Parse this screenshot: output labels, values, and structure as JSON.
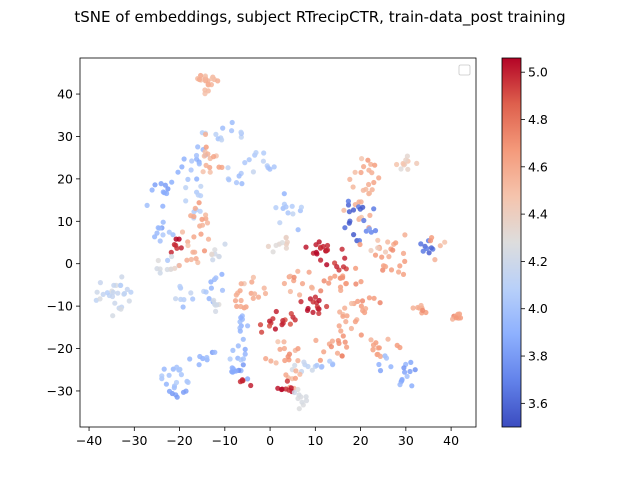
{
  "chart_data": {
    "type": "scatter",
    "title": "tSNE of embeddings, subject RTrecipCTR, train-data_post training",
    "xlabel": "",
    "ylabel": "",
    "xlim": [
      -42,
      45.5
    ],
    "ylim": [
      -38.5,
      48.5
    ],
    "x_ticks": [
      -40,
      -30,
      -20,
      -10,
      0,
      10,
      20,
      30,
      40
    ],
    "y_ticks": [
      -30,
      -20,
      -10,
      0,
      10,
      20,
      30,
      40
    ],
    "grid": false,
    "legend": {
      "placement": "top-right",
      "entries": []
    },
    "colorbar": {
      "colormap": "coolwarm",
      "vmin": 3.5,
      "vmax": 5.06,
      "ticks": [
        "3.6",
        "3.8",
        "4.0",
        "4.2",
        "4.4",
        "4.6",
        "4.8",
        "5.0"
      ],
      "tick_values": [
        3.6,
        3.8,
        4.0,
        4.2,
        4.4,
        4.6,
        4.8,
        5.0
      ]
    },
    "clusters": [
      {
        "cx": -14,
        "cy": 43,
        "sx": 1.2,
        "sy": 1.1,
        "n": 20,
        "value": 4.55
      },
      {
        "cx": -10,
        "cy": 31,
        "sx": 2.5,
        "sy": 1.5,
        "n": 12,
        "value": 4.05
      },
      {
        "cx": -18,
        "cy": 24,
        "sx": 2.5,
        "sy": 2.0,
        "n": 14,
        "value": 3.95
      },
      {
        "cx": -13,
        "cy": 23,
        "sx": 2.0,
        "sy": 3.0,
        "n": 14,
        "value": 4.55
      },
      {
        "cx": -2,
        "cy": 24,
        "sx": 1.5,
        "sy": 2.0,
        "n": 10,
        "value": 4.05
      },
      {
        "cx": -7,
        "cy": 21,
        "sx": 1.5,
        "sy": 1.5,
        "n": 8,
        "value": 4.05
      },
      {
        "cx": -24,
        "cy": 17,
        "sx": 1.5,
        "sy": 1.5,
        "n": 10,
        "value": 3.85
      },
      {
        "cx": -17,
        "cy": 15,
        "sx": 1.5,
        "sy": 2.5,
        "n": 10,
        "value": 4.1
      },
      {
        "cx": -15,
        "cy": 10,
        "sx": 2.0,
        "sy": 3.0,
        "n": 14,
        "value": 4.6
      },
      {
        "cx": -24,
        "cy": 7,
        "sx": 1.5,
        "sy": 3.0,
        "n": 12,
        "value": 4.0
      },
      {
        "cx": -21,
        "cy": 5,
        "sx": 0.8,
        "sy": 1.0,
        "n": 7,
        "value": 4.95
      },
      {
        "cx": -22,
        "cy": -1,
        "sx": 1.5,
        "sy": 1.5,
        "n": 10,
        "value": 4.25
      },
      {
        "cx": -17,
        "cy": 1,
        "sx": 1.5,
        "sy": 2.0,
        "n": 10,
        "value": 4.55
      },
      {
        "cx": -12,
        "cy": 2,
        "sx": 1.0,
        "sy": 1.5,
        "n": 8,
        "value": 4.25
      },
      {
        "cx": -18,
        "cy": -7,
        "sx": 2.0,
        "sy": 1.5,
        "n": 8,
        "value": 4.1
      },
      {
        "cx": -12,
        "cy": -6,
        "sx": 1.5,
        "sy": 1.5,
        "n": 10,
        "value": 3.95
      },
      {
        "cx": -12,
        "cy": -10,
        "sx": 1.0,
        "sy": 1.0,
        "n": 6,
        "value": 4.25
      },
      {
        "cx": -34,
        "cy": -7,
        "sx": 2.0,
        "sy": 2.0,
        "n": 26,
        "value": 4.15
      },
      {
        "cx": 4,
        "cy": 12,
        "sx": 1.5,
        "sy": 2.0,
        "n": 12,
        "value": 4.05
      },
      {
        "cx": 2,
        "cy": 5,
        "sx": 1.5,
        "sy": 1.5,
        "n": 10,
        "value": 4.35
      },
      {
        "cx": 11,
        "cy": 4,
        "sx": 1.5,
        "sy": 1.5,
        "n": 16,
        "value": 5.0
      },
      {
        "cx": 15,
        "cy": 0,
        "sx": 1.5,
        "sy": 1.0,
        "n": 7,
        "value": 4.95
      },
      {
        "cx": 20,
        "cy": 14,
        "sx": 2.5,
        "sy": 4.0,
        "n": 20,
        "value": 4.55
      },
      {
        "cx": 21,
        "cy": 23,
        "sx": 1.0,
        "sy": 1.0,
        "n": 8,
        "value": 4.6
      },
      {
        "cx": 18,
        "cy": 11,
        "sx": 2.0,
        "sy": 2.5,
        "n": 14,
        "value": 3.6
      },
      {
        "cx": 22,
        "cy": 8,
        "sx": 1.0,
        "sy": 1.0,
        "n": 5,
        "value": 3.7
      },
      {
        "cx": 27,
        "cy": 2,
        "sx": 2.5,
        "sy": 2.5,
        "n": 20,
        "value": 4.65
      },
      {
        "cx": 24,
        "cy": 5,
        "sx": 1.5,
        "sy": 1.0,
        "n": 6,
        "value": 4.45
      },
      {
        "cx": 30,
        "cy": 24,
        "sx": 1.0,
        "sy": 1.0,
        "n": 10,
        "value": 4.4
      },
      {
        "cx": 34,
        "cy": 4,
        "sx": 1.5,
        "sy": 1.0,
        "n": 8,
        "value": 3.65
      },
      {
        "cx": 37,
        "cy": 5,
        "sx": 1.0,
        "sy": 1.0,
        "n": 5,
        "value": 4.6
      },
      {
        "cx": 33,
        "cy": -10.5,
        "sx": 0.6,
        "sy": 0.6,
        "n": 8,
        "value": 4.6
      },
      {
        "cx": 41,
        "cy": -12.5,
        "sx": 0.8,
        "sy": 0.5,
        "n": 8,
        "value": 4.6
      },
      {
        "cx": 5,
        "cy": -4,
        "sx": 2.5,
        "sy": 1.5,
        "n": 12,
        "value": 4.6
      },
      {
        "cx": 14,
        "cy": -4,
        "sx": 3.0,
        "sy": 2.0,
        "n": 16,
        "value": 4.65
      },
      {
        "cx": -3,
        "cy": -7,
        "sx": 2.0,
        "sy": 2.0,
        "n": 12,
        "value": 4.55
      },
      {
        "cx": -6,
        "cy": -10,
        "sx": 1.5,
        "sy": 1.5,
        "n": 8,
        "value": 4.6
      },
      {
        "cx": 10,
        "cy": -10,
        "sx": 2.0,
        "sy": 1.0,
        "n": 14,
        "value": 5.0
      },
      {
        "cx": 4,
        "cy": -13,
        "sx": 2.0,
        "sy": 1.5,
        "n": 10,
        "value": 4.95
      },
      {
        "cx": 20,
        "cy": -9,
        "sx": 2.5,
        "sy": 2.0,
        "n": 12,
        "value": 4.65
      },
      {
        "cx": -7,
        "cy": -15,
        "sx": 1.5,
        "sy": 1.5,
        "n": 10,
        "value": 3.95
      },
      {
        "cx": -1,
        "cy": -14,
        "sx": 1.0,
        "sy": 1.0,
        "n": 6,
        "value": 4.95
      },
      {
        "cx": 4,
        "cy": -20,
        "sx": 2.0,
        "sy": 2.0,
        "n": 14,
        "value": 4.6
      },
      {
        "cx": 14,
        "cy": -19,
        "sx": 2.0,
        "sy": 2.0,
        "n": 14,
        "value": 4.65
      },
      {
        "cx": 24,
        "cy": -20,
        "sx": 2.0,
        "sy": 2.0,
        "n": 14,
        "value": 4.6
      },
      {
        "cx": 17,
        "cy": -14,
        "sx": 2.0,
        "sy": 1.5,
        "n": 10,
        "value": 4.55
      },
      {
        "cx": -15,
        "cy": -22,
        "sx": 1.5,
        "sy": 1.0,
        "n": 8,
        "value": 3.9
      },
      {
        "cx": -7,
        "cy": -21,
        "sx": 1.5,
        "sy": 1.0,
        "n": 7,
        "value": 3.95
      },
      {
        "cx": -21,
        "cy": -27,
        "sx": 1.5,
        "sy": 1.5,
        "n": 16,
        "value": 4.0
      },
      {
        "cx": -20,
        "cy": -31,
        "sx": 1.0,
        "sy": 0.7,
        "n": 6,
        "value": 3.85
      },
      {
        "cx": -8,
        "cy": -25,
        "sx": 1.5,
        "sy": 1.0,
        "n": 10,
        "value": 3.85
      },
      {
        "cx": -6,
        "cy": -28,
        "sx": 0.8,
        "sy": 0.8,
        "n": 5,
        "value": 4.95
      },
      {
        "cx": 8,
        "cy": -24,
        "sx": 2.0,
        "sy": 1.0,
        "n": 8,
        "value": 4.15
      },
      {
        "cx": 4,
        "cy": -26,
        "sx": 1.5,
        "sy": 1.5,
        "n": 8,
        "value": 4.55
      },
      {
        "cx": 3,
        "cy": -29.5,
        "sx": 1.0,
        "sy": 0.8,
        "n": 8,
        "value": 5.0
      },
      {
        "cx": 7,
        "cy": -32,
        "sx": 1.0,
        "sy": 1.5,
        "n": 10,
        "value": 4.25
      },
      {
        "cx": 30,
        "cy": -26,
        "sx": 1.0,
        "sy": 2.0,
        "n": 12,
        "value": 3.9
      },
      {
        "cx": 25,
        "cy": -23,
        "sx": 1.0,
        "sy": 1.0,
        "n": 5,
        "value": 3.9
      },
      {
        "cx": 13,
        "cy": -24,
        "sx": 1.5,
        "sy": 1.0,
        "n": 6,
        "value": 4.0
      }
    ]
  }
}
